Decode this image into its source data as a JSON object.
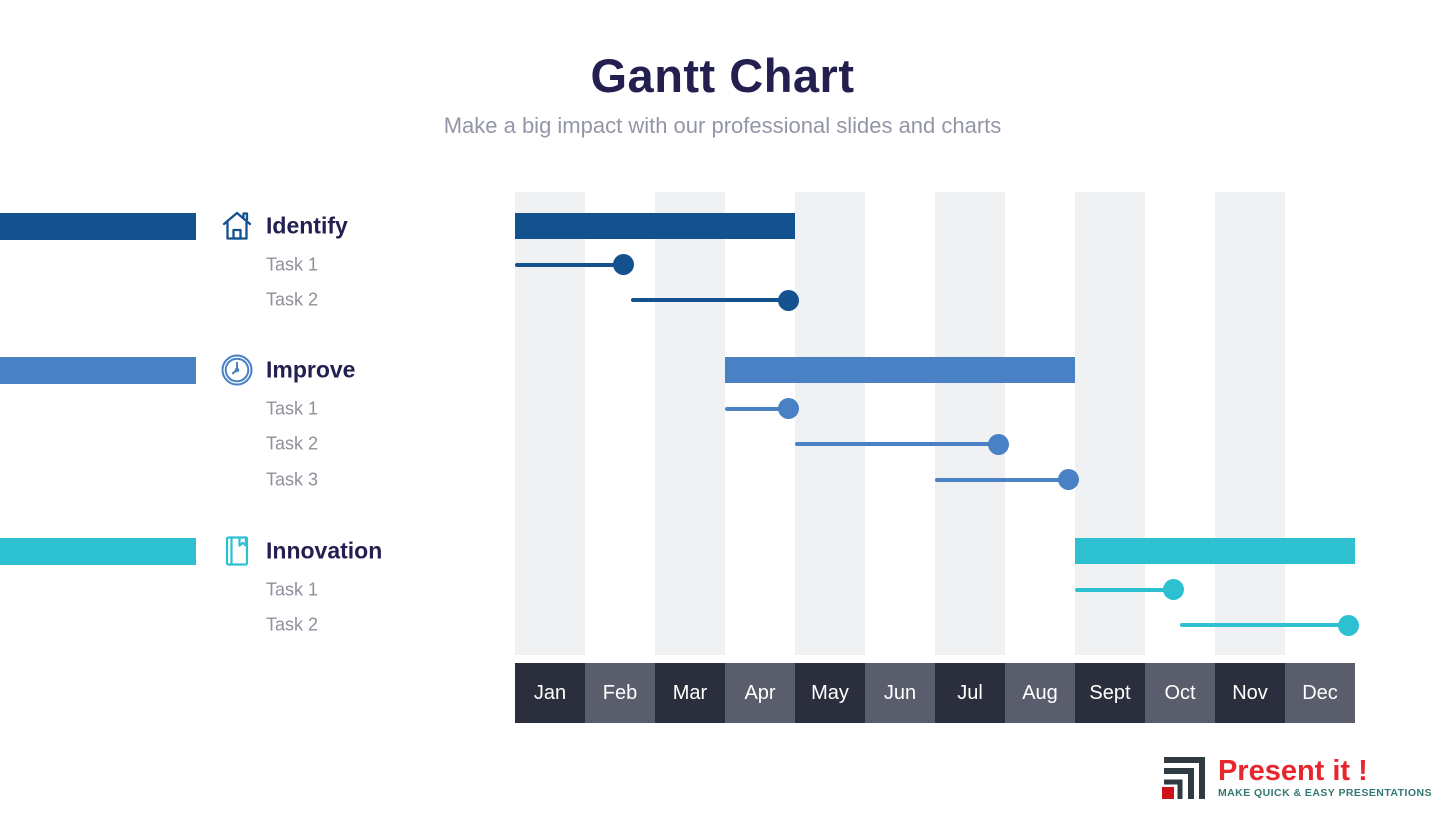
{
  "header": {
    "title": "Gantt Chart",
    "subtitle": "Make a big impact with our professional slides and charts"
  },
  "colors": {
    "title": "#232050",
    "subtitle": "#9396a6",
    "task_label": "#8e909c",
    "stripe": "#eff1f2",
    "axis_dark": "#2b2f3d",
    "axis_light": "#5a5e6c",
    "axis_text": "#ffffff"
  },
  "chart_data": {
    "type": "gantt",
    "unit": "months",
    "x_range": [
      0,
      12
    ],
    "months": [
      "Jan",
      "Feb",
      "Mar",
      "Apr",
      "May",
      "Jun",
      "Jul",
      "Aug",
      "Sept",
      "Oct",
      "Nov",
      "Dec"
    ],
    "stripe_month_indices": [
      0,
      2,
      4,
      6,
      8,
      10
    ],
    "groups": [
      {
        "name": "Identify",
        "icon": "house-icon",
        "color": "#14518f",
        "bar": {
          "start": 0,
          "end": 4,
          "start_month": "Jan",
          "end_month": "Apr"
        },
        "tasks": [
          {
            "label": "Task 1",
            "start": 0,
            "end": 1.55
          },
          {
            "label": "Task 2",
            "start": 1.65,
            "end": 3.9
          }
        ]
      },
      {
        "name": "Improve",
        "icon": "clock-icon",
        "color": "#4a80c4",
        "bar": {
          "start": 3,
          "end": 8,
          "start_month": "Apr",
          "end_month": "Aug"
        },
        "tasks": [
          {
            "label": "Task 1",
            "start": 3,
            "end": 3.9
          },
          {
            "label": "Task 2",
            "start": 4.0,
            "end": 6.9
          },
          {
            "label": "Task 3",
            "start": 6.0,
            "end": 7.9
          }
        ]
      },
      {
        "name": "Innovation",
        "icon": "book-icon",
        "color": "#2cc0d1",
        "bar": {
          "start": 8,
          "end": 12,
          "start_month": "Sept",
          "end_month": "Dec"
        },
        "tasks": [
          {
            "label": "Task 1",
            "start": 8,
            "end": 9.4
          },
          {
            "label": "Task 2",
            "start": 9.5,
            "end": 11.9
          }
        ]
      }
    ]
  },
  "footer": {
    "brand": "Present it !",
    "tagline": "MAKE QUICK & EASY PRESENTATIONS",
    "brand_color": "#e8262e",
    "tagline_color": "#34796f",
    "mark_color": "#2f3b42",
    "mark_accent": "#cf1119"
  }
}
